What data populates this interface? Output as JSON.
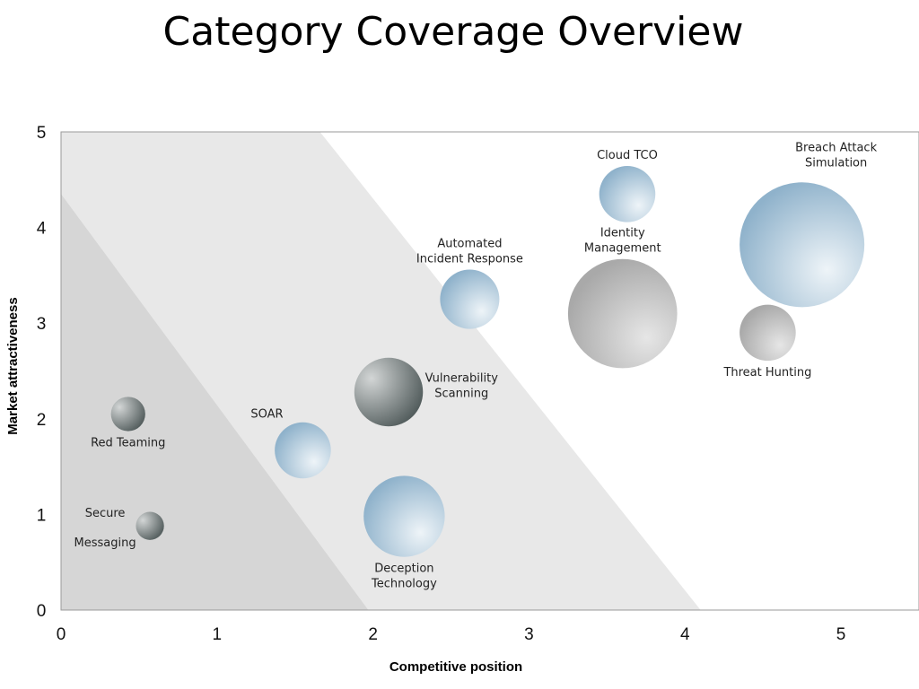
{
  "chart_data": {
    "type": "bubble",
    "title": "Category Coverage Overview",
    "xlabel": "Competitive position",
    "ylabel": "Market attractiveness",
    "xlim": [
      0,
      5.5
    ],
    "ylim": [
      0,
      5
    ],
    "xticks": [
      "0",
      "1",
      "2",
      "3",
      "4",
      "5"
    ],
    "yticks": [
      "0",
      "1",
      "2",
      "3",
      "4",
      "5"
    ],
    "zones": [
      {
        "name": "low",
        "color": "#d6d6d6",
        "points": [
          [
            0,
            0
          ],
          [
            0,
            4.35
          ],
          [
            1.97,
            0
          ]
        ]
      },
      {
        "name": "medium",
        "color": "#e8e8e8",
        "points": [
          [
            0,
            0
          ],
          [
            0,
            5
          ],
          [
            1.66,
            5
          ],
          [
            4.1,
            0
          ]
        ]
      }
    ],
    "points": [
      {
        "label": [
          "Cloud TCO"
        ],
        "x": 3.63,
        "y": 4.35,
        "r": 0.18,
        "style": "blue",
        "label_pos": "above"
      },
      {
        "label": [
          "Breach Attack",
          "Simulation"
        ],
        "x": 4.75,
        "y": 3.82,
        "r": 0.4,
        "style": "blue",
        "label_pos": "above-right"
      },
      {
        "label": [
          "Identity",
          "Management"
        ],
        "x": 3.6,
        "y": 3.1,
        "r": 0.35,
        "style": "gray",
        "label_pos": "above"
      },
      {
        "label": [
          "Threat Hunting"
        ],
        "x": 4.53,
        "y": 2.9,
        "r": 0.18,
        "style": "gray",
        "label_pos": "below"
      },
      {
        "label": [
          "Automated",
          "Incident Response"
        ],
        "x": 2.62,
        "y": 3.25,
        "r": 0.19,
        "style": "blue",
        "label_pos": "above"
      },
      {
        "label": [
          "Vulnerability",
          "Scanning"
        ],
        "x": 2.1,
        "y": 2.28,
        "r": 0.22,
        "style": "dark",
        "label_pos": "right"
      },
      {
        "label": [
          "SOAR"
        ],
        "x": 1.55,
        "y": 1.67,
        "r": 0.18,
        "style": "blue",
        "label_pos": "above-left"
      },
      {
        "label": [
          "Deception",
          "Technology"
        ],
        "x": 2.2,
        "y": 0.98,
        "r": 0.26,
        "style": "blue",
        "label_pos": "below"
      },
      {
        "label": [
          "Red Teaming"
        ],
        "x": 0.43,
        "y": 2.05,
        "r": 0.11,
        "style": "dark",
        "label_pos": "below"
      },
      {
        "label": [
          "Secure",
          "Messaging"
        ],
        "x": 0.57,
        "y": 0.88,
        "r": 0.09,
        "style": "dark",
        "label_pos": "split"
      }
    ]
  }
}
